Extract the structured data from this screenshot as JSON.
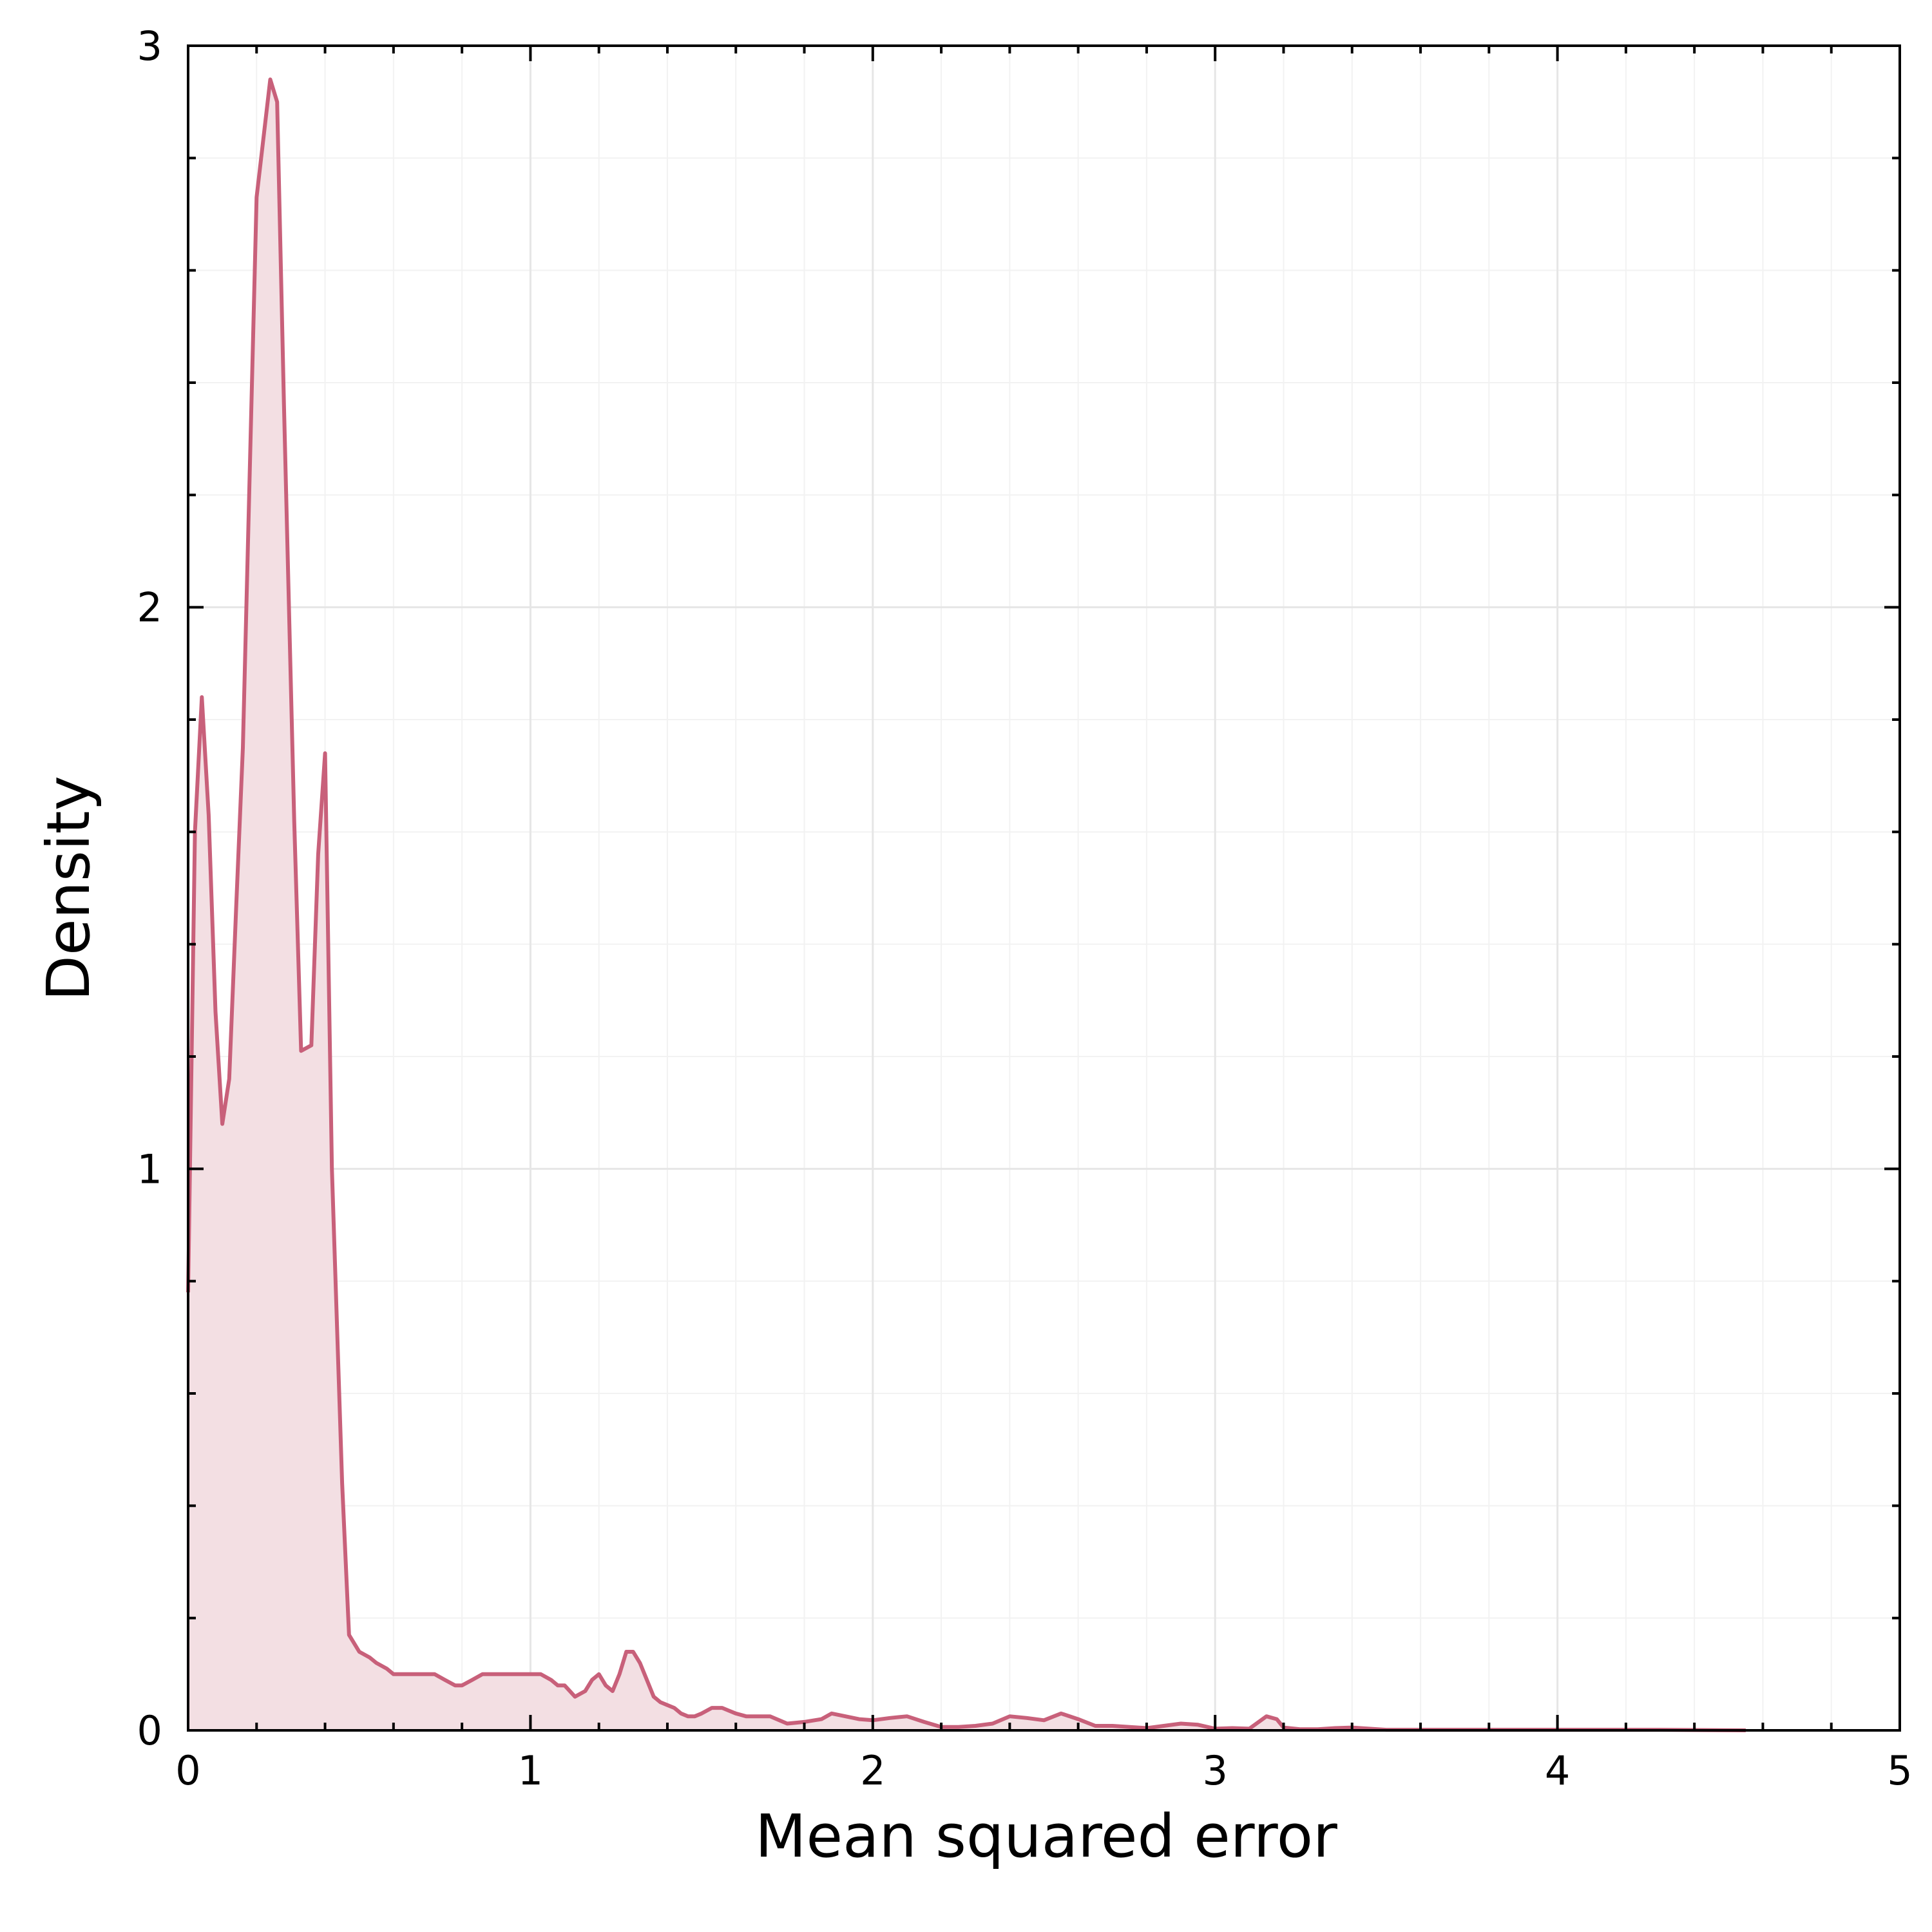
{
  "chart_data": {
    "type": "area",
    "title": "",
    "xlabel": "Mean squared error",
    "ylabel": "Density",
    "xlim": [
      0,
      5
    ],
    "ylim": [
      0,
      3
    ],
    "xticks": [
      0,
      1,
      2,
      3,
      4,
      5
    ],
    "yticks": [
      0,
      1,
      2,
      3
    ],
    "xtick_labels": [
      "0",
      "1",
      "2",
      "3",
      "4",
      "5"
    ],
    "ytick_labels": [
      "0",
      "1",
      "2",
      "3"
    ],
    "grid": true,
    "minor_grid": true,
    "legend": "none",
    "colors": {
      "line": "#c8607a",
      "fill": "#f3dfe3",
      "frame": "#000000",
      "grid": "#e6e6e6"
    },
    "series": [
      {
        "x": [
          0.0,
          0.02,
          0.04,
          0.06,
          0.08,
          0.1,
          0.12,
          0.14,
          0.16,
          0.2,
          0.24,
          0.26,
          0.28,
          0.31,
          0.33,
          0.36,
          0.38,
          0.4,
          0.42,
          0.45,
          0.47,
          0.5,
          0.53,
          0.55,
          0.58,
          0.6,
          0.63,
          0.66,
          0.68,
          0.7,
          0.72,
          0.75,
          0.78,
          0.8,
          0.83,
          0.86,
          0.9,
          0.93,
          0.96,
          1.0,
          1.03,
          1.06,
          1.08,
          1.1,
          1.13,
          1.16,
          1.18,
          1.2,
          1.22,
          1.24,
          1.26,
          1.28,
          1.3,
          1.32,
          1.34,
          1.36,
          1.38,
          1.4,
          1.42,
          1.44,
          1.46,
          1.48,
          1.5,
          1.53,
          1.56,
          1.58,
          1.6,
          1.63,
          1.66,
          1.7,
          1.75,
          1.8,
          1.85,
          1.88,
          1.92,
          1.96,
          2.0,
          2.05,
          2.1,
          2.15,
          2.2,
          2.25,
          2.3,
          2.35,
          2.4,
          2.45,
          2.5,
          2.55,
          2.6,
          2.65,
          2.7,
          2.75,
          2.8,
          2.85,
          2.9,
          2.95,
          3.0,
          3.05,
          3.1,
          3.15,
          3.18,
          3.2,
          3.25,
          3.3,
          3.35,
          3.4,
          3.5,
          3.7,
          4.0,
          4.3,
          4.55
        ],
        "y": [
          0.78,
          1.6,
          1.84,
          1.63,
          1.28,
          1.08,
          1.16,
          1.46,
          1.75,
          2.73,
          2.94,
          2.9,
          2.36,
          1.62,
          1.21,
          1.22,
          1.56,
          1.74,
          1.0,
          0.44,
          0.17,
          0.14,
          0.13,
          0.12,
          0.11,
          0.1,
          0.1,
          0.1,
          0.1,
          0.1,
          0.1,
          0.09,
          0.08,
          0.08,
          0.09,
          0.1,
          0.1,
          0.1,
          0.1,
          0.1,
          0.1,
          0.09,
          0.08,
          0.08,
          0.06,
          0.07,
          0.09,
          0.1,
          0.08,
          0.07,
          0.1,
          0.14,
          0.14,
          0.12,
          0.09,
          0.06,
          0.05,
          0.045,
          0.04,
          0.03,
          0.025,
          0.025,
          0.03,
          0.04,
          0.04,
          0.035,
          0.03,
          0.025,
          0.025,
          0.025,
          0.012,
          0.015,
          0.02,
          0.03,
          0.025,
          0.02,
          0.018,
          0.022,
          0.025,
          0.015,
          0.006,
          0.006,
          0.008,
          0.012,
          0.025,
          0.022,
          0.018,
          0.03,
          0.02,
          0.008,
          0.008,
          0.006,
          0.004,
          0.008,
          0.012,
          0.01,
          0.003,
          0.004,
          0.003,
          0.025,
          0.02,
          0.005,
          0.002,
          0.002,
          0.004,
          0.005,
          0.001,
          0.001,
          0.001,
          0.001,
          0.0
        ]
      }
    ]
  }
}
